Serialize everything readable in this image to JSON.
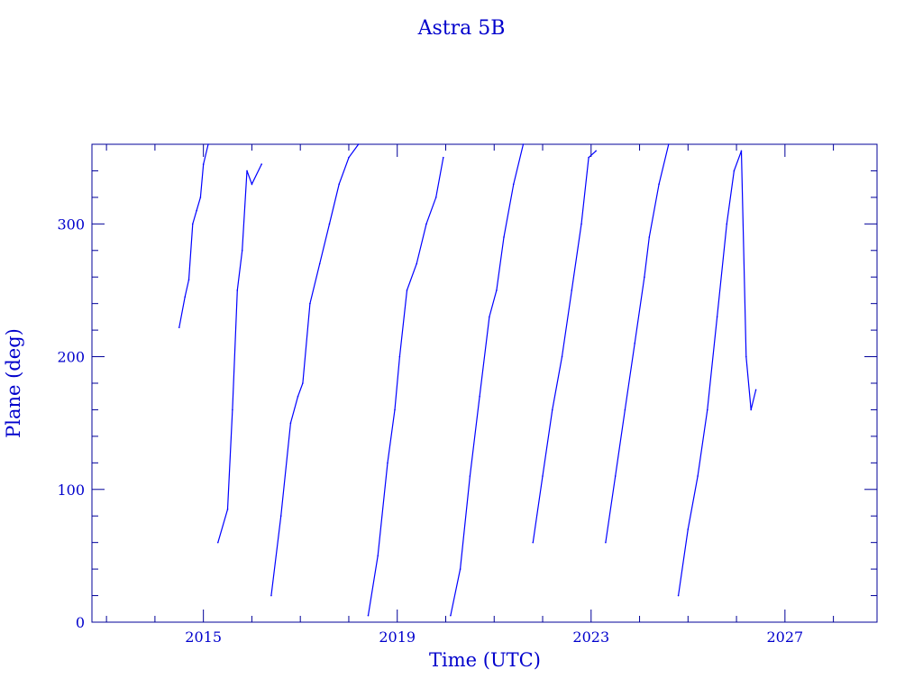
{
  "chart_data": {
    "type": "line",
    "title": "Astra 5B",
    "xlabel": "Time (UTC)",
    "ylabel": "Plane (deg)",
    "xlim": [
      2012.7,
      2028.9
    ],
    "ylim": [
      0,
      360
    ],
    "x_ticks": [
      2015,
      2019,
      2023,
      2027
    ],
    "y_ticks": [
      0,
      100,
      200,
      300
    ],
    "x_tick_labels": [
      "2015",
      "2019",
      "2023",
      "2027"
    ],
    "y_tick_labels": [
      "0",
      "100",
      "200",
      "300"
    ],
    "grid": false,
    "color": "#0000ff",
    "axis_color": "#000099",
    "series": [
      {
        "x": [
          2014.5,
          2014.62,
          2014.7,
          2014.78,
          2014.86,
          2014.94,
          2015.0,
          2015.1,
          2015.3,
          2015.5,
          2015.6,
          2015.7,
          2015.8,
          2015.9,
          2016.0,
          2016.2,
          2016.4,
          2016.6,
          2016.8,
          2016.95,
          2017.05,
          2017.2,
          2017.4,
          2017.6,
          2017.8,
          2018.0,
          2018.2,
          2018.4,
          2018.6,
          2018.8,
          2018.95,
          2019.05,
          2019.2,
          2019.4,
          2019.6,
          2019.8,
          2019.95,
          2020.1,
          2020.3,
          2020.5,
          2020.7,
          2020.9,
          2021.05,
          2021.2,
          2021.4,
          2021.6,
          2021.8,
          2022.0,
          2022.2,
          2022.4,
          2022.6,
          2022.8,
          2022.95,
          2023.1,
          2023.3,
          2023.5,
          2023.7,
          2023.9,
          2024.1,
          2024.2,
          2024.4,
          2024.6,
          2024.8,
          2025.0,
          2025.2,
          2025.4,
          2025.6,
          2025.8,
          2025.95,
          2026.1,
          2026.2,
          2026.3,
          2026.4
        ],
        "y": [
          222,
          245,
          258,
          300,
          310,
          320,
          345,
          360,
          60,
          85,
          160,
          250,
          280,
          340,
          330,
          345,
          20,
          80,
          150,
          170,
          180,
          240,
          270,
          300,
          330,
          350,
          360,
          5,
          50,
          120,
          160,
          200,
          250,
          270,
          300,
          320,
          350,
          5,
          40,
          110,
          170,
          230,
          250,
          290,
          330,
          360,
          60,
          110,
          160,
          200,
          250,
          300,
          350,
          355,
          60,
          110,
          160,
          210,
          260,
          290,
          330,
          360,
          20,
          70,
          110,
          160,
          230,
          300,
          340,
          355,
          200,
          160,
          175
        ]
      }
    ]
  }
}
